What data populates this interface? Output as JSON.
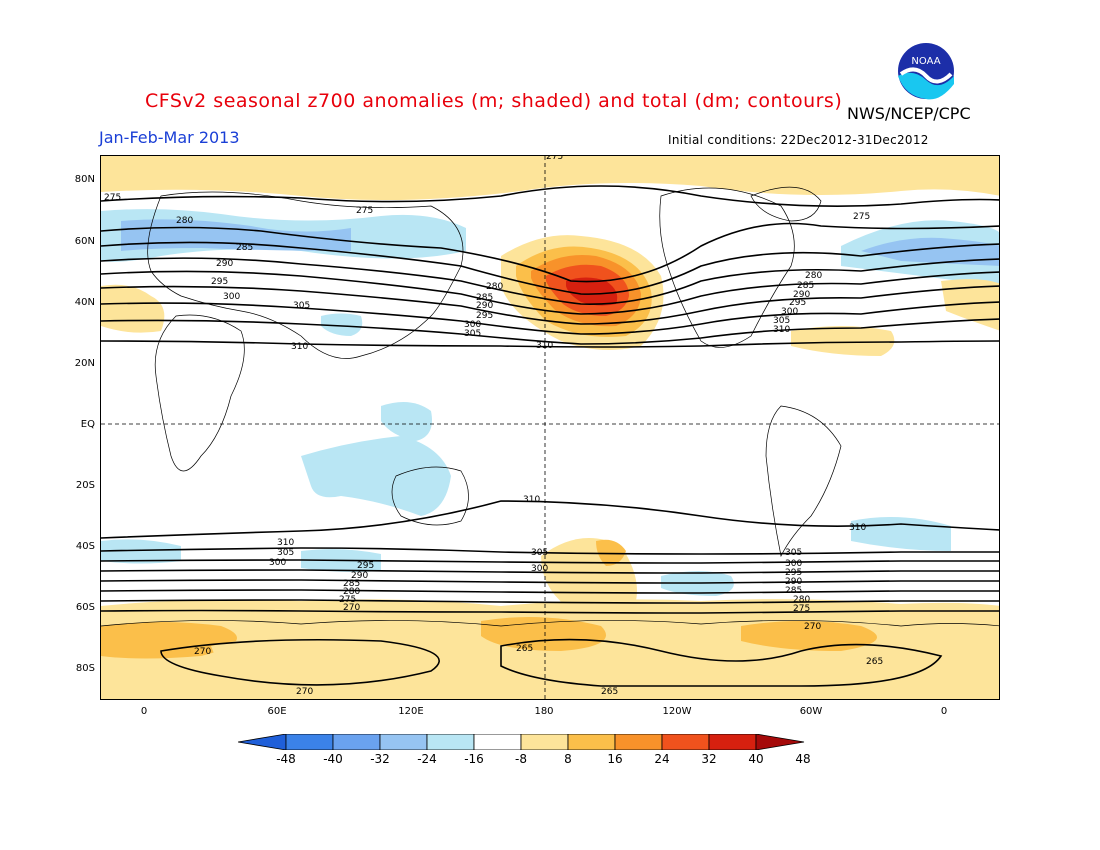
{
  "header": {
    "title": "CFSv2 seasonal z700 anomalies (m; shaded) and total (dm; contours)",
    "agency": "NWS/NCEP/CPC",
    "period": "Jan-Feb-Mar 2013",
    "initial_conditions": "Initial conditions: 22Dec2012-31Dec2012",
    "logo_text": "NOAA"
  },
  "axes": {
    "lat_labels": [
      "80N",
      "60N",
      "40N",
      "20N",
      "EQ",
      "20S",
      "40S",
      "60S",
      "80S"
    ],
    "lon_labels": [
      "0",
      "60E",
      "120E",
      "180",
      "120W",
      "60W",
      "0"
    ]
  },
  "contour_labels": [
    "275",
    "280",
    "285",
    "290",
    "295",
    "300",
    "305",
    "310",
    "265",
    "270"
  ],
  "colorbar": {
    "labels": [
      "-48",
      "-40",
      "-32",
      "-24",
      "-16",
      "-8",
      "8",
      "16",
      "24",
      "32",
      "40",
      "48"
    ],
    "colors": [
      "#1f5fd9",
      "#3b82e8",
      "#6aa2ef",
      "#96c4f2",
      "#b9e6f4",
      "#ffffff",
      "#fde49a",
      "#fbbf4a",
      "#f8922a",
      "#f0521d",
      "#d6200f",
      "#a50a0a"
    ]
  },
  "colors": {
    "title": "#e8000b",
    "period": "#1a3fd6"
  }
}
